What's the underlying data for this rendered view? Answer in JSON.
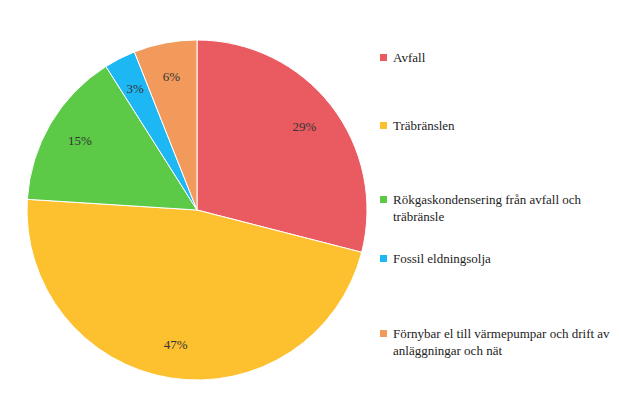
{
  "chart_data": {
    "type": "pie",
    "categories": [
      "Avfall",
      "Träbränslen",
      "Rökgaskondensering från avfall och träbränsle",
      "Fossil eldningsolja",
      "Förnybar el till värmepumpar och drift av anläggningar och nät"
    ],
    "values": [
      29,
      47,
      15,
      3,
      6
    ],
    "value_labels": [
      "29%",
      "47%",
      "15%",
      "3%",
      "6%"
    ],
    "colors": [
      "#e95a61",
      "#fdc02f",
      "#5cc947",
      "#1db8f3",
      "#f19a5b"
    ],
    "data_labels": true,
    "legend": "right"
  }
}
